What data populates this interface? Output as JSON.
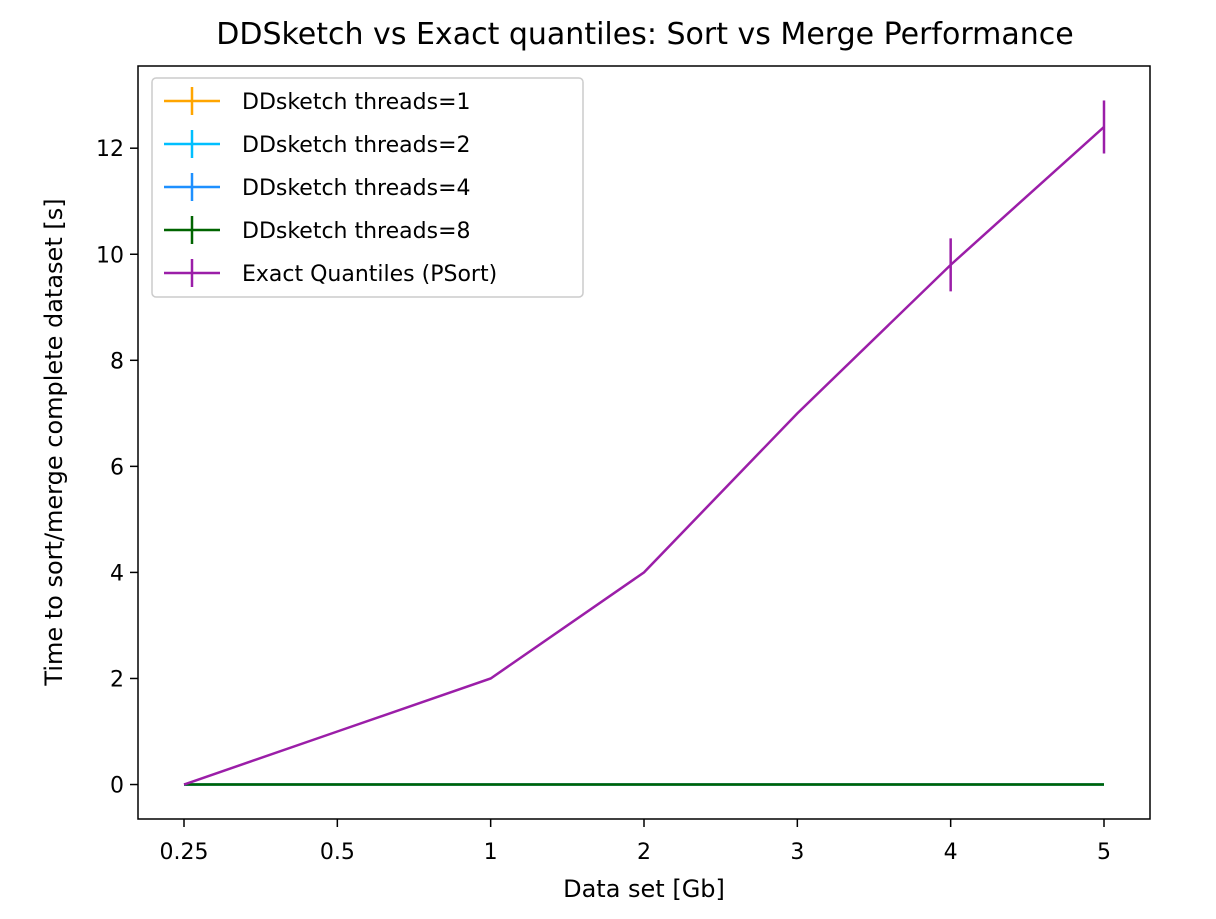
{
  "chart_data": {
    "type": "line",
    "title": "DDSketch vs Exact quantiles: Sort vs Merge Performance",
    "xlabel": "Data set [Gb]",
    "ylabel": "Time to sort/merge complete dataset [s]",
    "x_categories": [
      "0.25",
      "0.5",
      "1",
      "2",
      "3",
      "4",
      "5"
    ],
    "ylim": [
      -0.65,
      13.55
    ],
    "yticks": [
      0,
      2,
      4,
      6,
      8,
      10,
      12
    ],
    "grid": false,
    "legend_position": "top-left",
    "series": [
      {
        "name": "DDsketch threads=1",
        "color": "#ffa500",
        "values": [
          0,
          0,
          0,
          0,
          0,
          0,
          0
        ],
        "errors": [
          0,
          0,
          0,
          0,
          0,
          0,
          0
        ]
      },
      {
        "name": "DDsketch threads=2",
        "color": "#00bfff",
        "values": [
          0,
          0,
          0,
          0,
          0,
          0,
          0
        ],
        "errors": [
          0,
          0,
          0,
          0,
          0,
          0,
          0
        ]
      },
      {
        "name": "DDsketch threads=4",
        "color": "#1e90ff",
        "values": [
          0,
          0,
          0,
          0,
          0,
          0,
          0
        ],
        "errors": [
          0,
          0,
          0,
          0,
          0,
          0,
          0
        ]
      },
      {
        "name": "DDsketch threads=8",
        "color": "#006400",
        "values": [
          0,
          0,
          0,
          0,
          0,
          0,
          0
        ],
        "errors": [
          0,
          0,
          0,
          0,
          0,
          0,
          0
        ]
      },
      {
        "name": "Exact Quantiles (PSort)",
        "color": "#9b1ea8",
        "values": [
          0,
          1,
          2,
          4,
          7,
          9.8,
          12.4
        ],
        "errors": [
          0,
          0,
          0,
          0,
          0,
          0.5,
          0.5
        ]
      }
    ]
  }
}
